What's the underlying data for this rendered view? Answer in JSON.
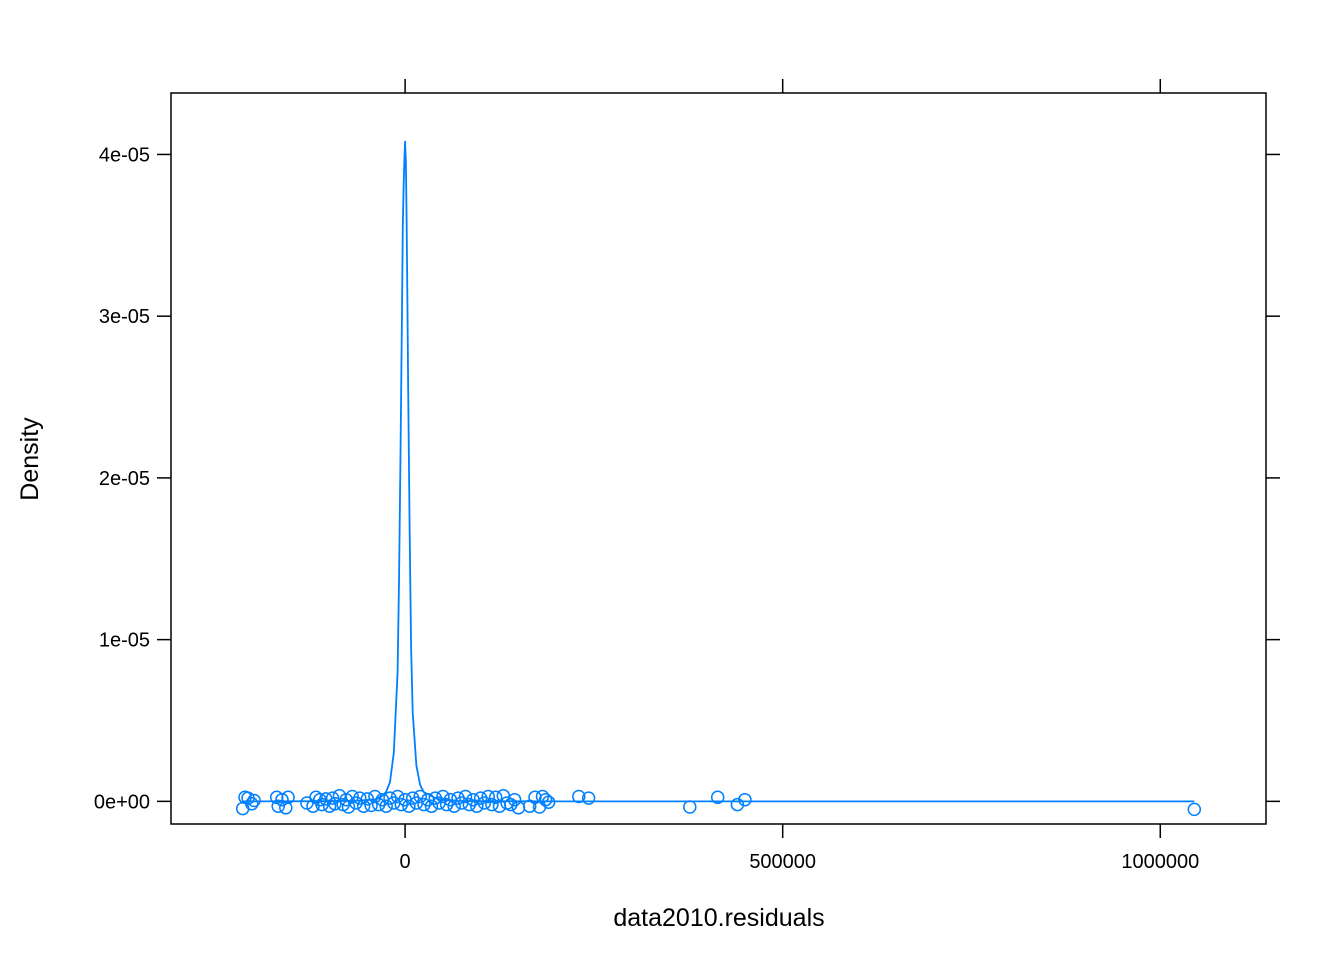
{
  "chart_data": {
    "type": "line",
    "title": "",
    "xlabel": "data2010.residuals",
    "ylabel": "Density",
    "xlim": [
      -310000,
      1140000
    ],
    "ylim": [
      -1.4e-06,
      4.38e-05
    ],
    "x_ticks": [
      {
        "value": 0,
        "label": "0"
      },
      {
        "value": 500000,
        "label": "500000"
      },
      {
        "value": 1000000,
        "label": "1000000"
      }
    ],
    "y_ticks": [
      {
        "value": 0,
        "label": "0e+00"
      },
      {
        "value": 1e-05,
        "label": "1e-05"
      },
      {
        "value": 2e-05,
        "label": "2e-05"
      },
      {
        "value": 3e-05,
        "label": "3e-05"
      },
      {
        "value": 4e-05,
        "label": "4e-05"
      }
    ],
    "grid": false,
    "colors": {
      "series": "#0080ff",
      "axes": "#000000"
    },
    "series": [
      {
        "kind": "density-curve",
        "x": [
          -215000,
          -100000,
          -60000,
          -40000,
          -30000,
          -25000,
          -20000,
          -15000,
          -10000,
          -8000,
          -6000,
          -4000,
          -3000,
          -2000,
          -1000,
          0,
          1000,
          2000,
          3000,
          4000,
          6000,
          8000,
          10000,
          15000,
          20000,
          25000,
          30000,
          40000,
          50000,
          70000,
          100000,
          200000,
          400000,
          1045000
        ],
        "y": [
          0,
          1e-08,
          5e-08,
          1.2e-07,
          3.5e-07,
          6e-07,
          1.2e-06,
          3e-06,
          8e-06,
          1.4e-05,
          2.2e-05,
          3.1e-05,
          3.55e-05,
          3.8e-05,
          3.95e-05,
          4.08e-05,
          3.95e-05,
          3.6e-05,
          3.1e-05,
          2.6e-05,
          1.7e-05,
          9.5e-06,
          5.5e-06,
          2.2e-06,
          1e-06,
          5.5e-07,
          4.5e-07,
          2e-07,
          8e-08,
          3e-08,
          1e-08,
          0,
          0,
          0
        ]
      },
      {
        "kind": "rug-points",
        "x": [
          -215000,
          -212000,
          -208000,
          -203000,
          -200000,
          -170000,
          -168000,
          -163000,
          -158000,
          -155000,
          -130000,
          -122000,
          -118000,
          -113000,
          -110000,
          -105000,
          -100000,
          -96000,
          -93000,
          -87000,
          -82000,
          -78000,
          -75000,
          -70000,
          -65000,
          -60000,
          -55000,
          -50000,
          -45000,
          -40000,
          -35000,
          -30000,
          -25000,
          -20000,
          -15000,
          -10000,
          -5000,
          0,
          5000,
          10000,
          15000,
          20000,
          25000,
          30000,
          35000,
          40000,
          45000,
          50000,
          55000,
          60000,
          65000,
          70000,
          75000,
          80000,
          85000,
          90000,
          95000,
          100000,
          105000,
          110000,
          115000,
          120000,
          125000,
          130000,
          135000,
          140000,
          145000,
          150000,
          165000,
          172000,
          178000,
          182000,
          186000,
          190000,
          230000,
          243000,
          377000,
          414000,
          440000,
          450000,
          1045000
        ],
        "y": [
          -4.5e-07,
          2.5e-07,
          2e-07,
          -1.5e-07,
          5e-08,
          2.5e-07,
          -3e-07,
          1e-07,
          -4e-07,
          2.5e-07,
          -1e-07,
          -3e-07,
          2.5e-07,
          1e-07,
          -2e-07,
          1.5e-07,
          -3e-07,
          2e-07,
          -1.5e-07,
          3.5e-07,
          -2e-07,
          1e-07,
          -3.5e-07,
          3e-07,
          -1e-07,
          2e-07,
          -3e-07,
          1.5e-07,
          -2.5e-07,
          3e-07,
          -2e-07,
          1e-07,
          -3e-07,
          2e-07,
          -1e-07,
          3e-07,
          -2e-07,
          1e-07,
          -3e-07,
          2e-07,
          -1e-07,
          3e-07,
          -2e-07,
          1e-07,
          -3e-07,
          2e-07,
          -1e-07,
          3e-07,
          -2e-07,
          1e-07,
          -3e-07,
          2e-07,
          -1e-07,
          3e-07,
          -2e-07,
          1e-07,
          -3e-07,
          2e-07,
          -1e-07,
          3e-07,
          -2e-07,
          2.5e-07,
          -3e-07,
          3.5e-07,
          -1e-07,
          -2e-07,
          1e-07,
          -4e-07,
          -3e-07,
          2.5e-07,
          -3.5e-07,
          3e-07,
          1e-07,
          -5e-08,
          3e-07,
          2e-07,
          -3.5e-07,
          2.5e-07,
          -2e-07,
          1e-07,
          -5e-07
        ]
      }
    ]
  }
}
